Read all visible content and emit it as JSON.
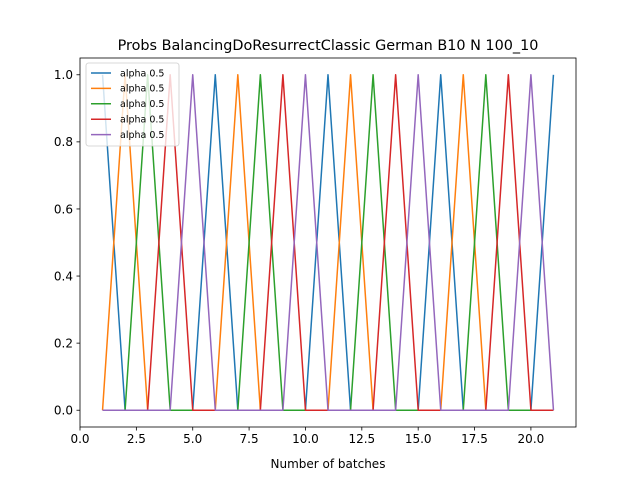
{
  "chart_data": {
    "type": "line",
    "title": "Probs BalancingDoResurrectClassic German B10 N 100_10",
    "xlabel": "Number of batches",
    "ylabel": "",
    "xlim": [
      0.0,
      22.0
    ],
    "ylim": [
      -0.05,
      1.05
    ],
    "xticks": [
      0.0,
      2.5,
      5.0,
      7.5,
      10.0,
      12.5,
      15.0,
      17.5,
      20.0
    ],
    "xtick_labels": [
      "0.0",
      "2.5",
      "5.0",
      "7.5",
      "10.0",
      "12.5",
      "15.0",
      "17.5",
      "20.0"
    ],
    "yticks": [
      0.0,
      0.2,
      0.4,
      0.6,
      0.8,
      1.0
    ],
    "ytick_labels": [
      "0.0",
      "0.2",
      "0.4",
      "0.6",
      "0.8",
      "1.0"
    ],
    "grid": false,
    "legend_position": "top-left",
    "x": [
      1,
      2,
      3,
      4,
      5,
      6,
      7,
      8,
      9,
      10,
      11,
      12,
      13,
      14,
      15,
      16,
      17,
      18,
      19,
      20,
      21
    ],
    "series": [
      {
        "name": "alpha 0.5",
        "color": "#1f77b4",
        "values": [
          1,
          0,
          0,
          0,
          0,
          1,
          0,
          0,
          0,
          0,
          1,
          0,
          0,
          0,
          0,
          1,
          0,
          0,
          0,
          0,
          1
        ]
      },
      {
        "name": "alpha 0.5",
        "color": "#ff7f0e",
        "values": [
          0,
          1,
          0,
          0,
          0,
          0,
          1,
          0,
          0,
          0,
          0,
          1,
          0,
          0,
          0,
          0,
          1,
          0,
          0,
          0,
          0
        ]
      },
      {
        "name": "alpha 0.5",
        "color": "#2ca02c",
        "values": [
          0,
          0,
          1,
          0,
          0,
          0,
          0,
          1,
          0,
          0,
          0,
          0,
          1,
          0,
          0,
          0,
          0,
          1,
          0,
          0,
          0
        ]
      },
      {
        "name": "alpha 0.5",
        "color": "#d62728",
        "values": [
          0,
          0,
          0,
          1,
          0,
          0,
          0,
          0,
          1,
          0,
          0,
          0,
          0,
          1,
          0,
          0,
          0,
          0,
          1,
          0,
          0
        ]
      },
      {
        "name": "alpha 0.5",
        "color": "#9467bd",
        "values": [
          0,
          0,
          0,
          0,
          1,
          0,
          0,
          0,
          0,
          1,
          0,
          0,
          0,
          0,
          1,
          0,
          0,
          0,
          0,
          1,
          0
        ]
      }
    ]
  }
}
